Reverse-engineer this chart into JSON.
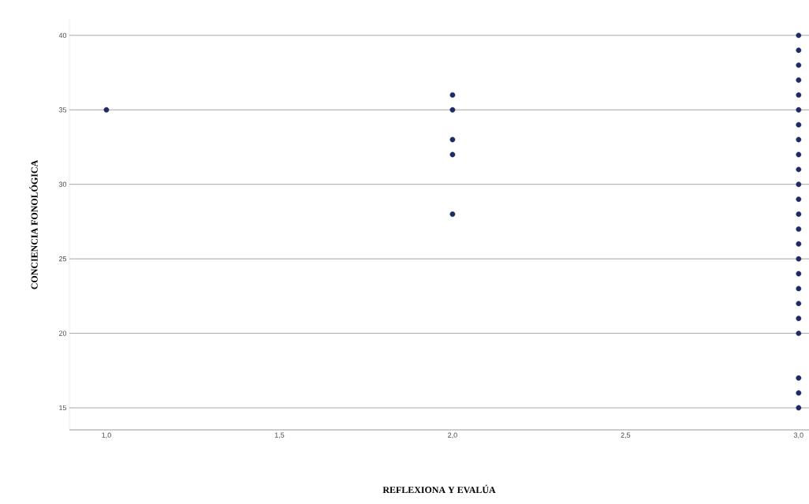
{
  "chart_data": {
    "type": "scatter",
    "xlabel": "REFLEXIONA Y EVALÚA",
    "ylabel": "CONCIENCIA FONOLÓGICA",
    "x": [
      1,
      2,
      2,
      2,
      2,
      2,
      3,
      3,
      3,
      3,
      3,
      3,
      3,
      3,
      3,
      3,
      3,
      3,
      3,
      3,
      3,
      3,
      3,
      3,
      3,
      3,
      3,
      3,
      3,
      3
    ],
    "values": [
      35,
      36,
      35,
      33,
      32,
      28,
      40,
      39,
      38,
      37,
      36,
      35,
      34,
      33,
      32,
      31,
      30,
      29,
      28,
      27,
      26,
      25,
      24,
      23,
      22,
      21,
      20,
      17,
      16,
      15
    ],
    "color": "#1c2b63",
    "marker": "circle",
    "grid": "y",
    "xlim": [
      0.893,
      3.03
    ],
    "ylim": [
      13.52,
      41.05
    ],
    "xticks": [
      {
        "value": 1,
        "label": "1,0"
      },
      {
        "value": 1.5,
        "label": "1,5"
      },
      {
        "value": 2,
        "label": "2,0"
      },
      {
        "value": 2.5,
        "label": "2,5"
      },
      {
        "value": 3,
        "label": "3,0"
      }
    ],
    "yticks": [
      15,
      20,
      25,
      30,
      35,
      40
    ]
  }
}
